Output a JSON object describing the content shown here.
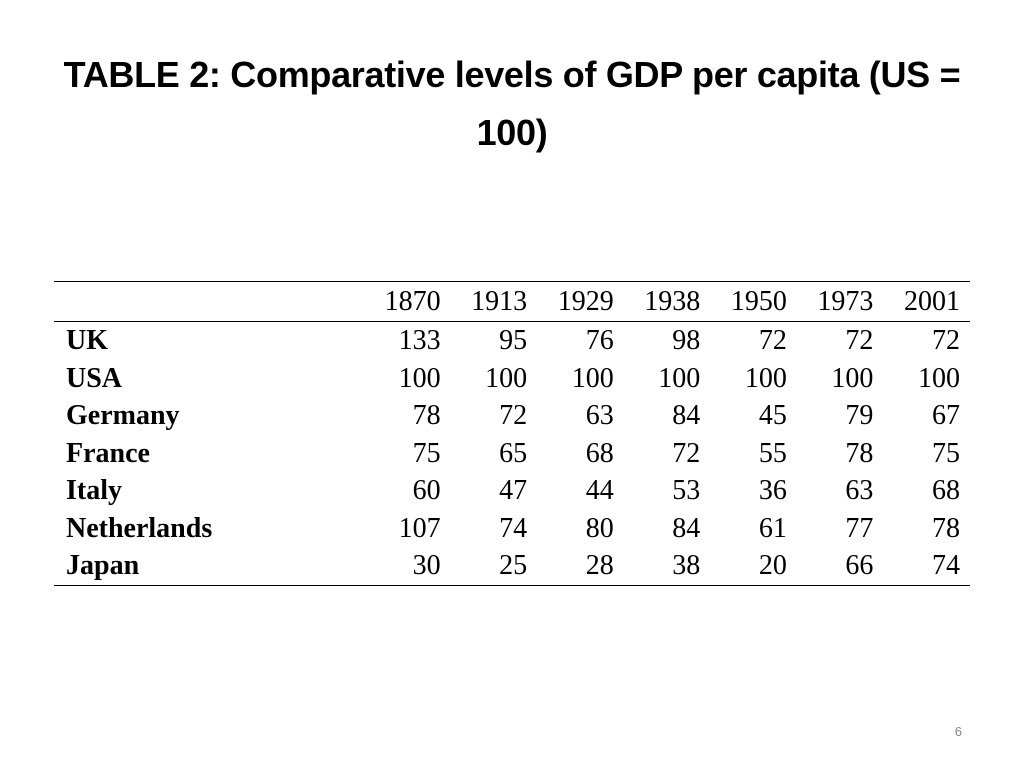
{
  "title": "TABLE 2: Comparative levels of GDP per capita (US = 100)",
  "table": {
    "header_blank": "",
    "years": [
      "1870",
      "1913",
      "1929",
      "1938",
      "1950",
      "1973",
      "2001"
    ],
    "rows": [
      {
        "country": "UK",
        "values": [
          "133",
          "95",
          "76",
          "98",
          "72",
          "72",
          "72"
        ]
      },
      {
        "country": "USA",
        "values": [
          "100",
          "100",
          "100",
          "100",
          "100",
          "100",
          "100"
        ]
      },
      {
        "country": "Germany",
        "values": [
          "78",
          "72",
          "63",
          "84",
          "45",
          "79",
          "67"
        ]
      },
      {
        "country": "France",
        "values": [
          "75",
          "65",
          "68",
          "72",
          "55",
          "78",
          "75"
        ]
      },
      {
        "country": "Italy",
        "values": [
          "60",
          "47",
          "44",
          "53",
          "36",
          "63",
          "68"
        ]
      },
      {
        "country": "Netherlands",
        "values": [
          "107",
          "74",
          "80",
          "84",
          "61",
          "77",
          "78"
        ]
      },
      {
        "country": "Japan",
        "values": [
          "30",
          "25",
          "28",
          "38",
          "20",
          "66",
          "74"
        ]
      }
    ]
  },
  "page_number": "6"
}
